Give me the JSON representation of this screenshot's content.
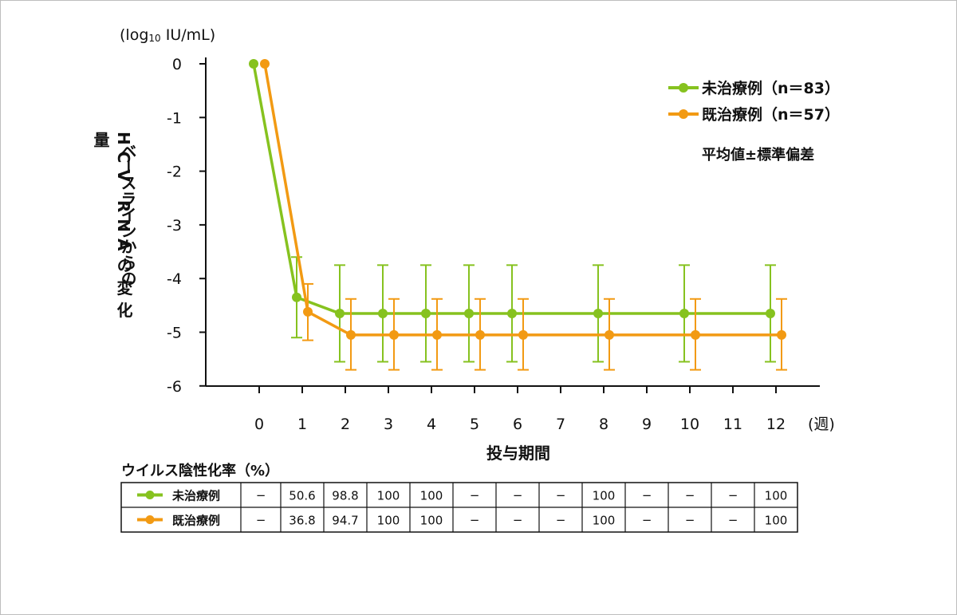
{
  "chart_data": {
    "type": "line",
    "ylabel_unit_pre": "(log",
    "ylabel_unit_sub": "10",
    "ylabel_unit_post": " IU/mL)",
    "ylabel_line1": "HCV RNAの変化量",
    "ylabel_line2": "ベースラインからの",
    "xlabel": "投与期間",
    "x_unit": "(週)",
    "ylim": [
      -6,
      0
    ],
    "y_ticks": [
      "0",
      "-1",
      "-2",
      "-3",
      "-4",
      "-5",
      "-6"
    ],
    "x_ticks": [
      "0",
      "1",
      "2",
      "3",
      "4",
      "5",
      "6",
      "7",
      "8",
      "9",
      "10",
      "11",
      "12"
    ],
    "stat_note": "平均値±標準偏差",
    "series": [
      {
        "name": "未治療例（n＝83）",
        "color": "#86c21f",
        "x": [
          0,
          1,
          2,
          3,
          4,
          5,
          6,
          8,
          10,
          12
        ],
        "values": [
          0,
          -4.35,
          -4.65,
          -4.65,
          -4.65,
          -4.65,
          -4.65,
          -4.65,
          -4.65,
          -4.65
        ],
        "err_low": [
          null,
          -5.1,
          -5.55,
          -5.55,
          -5.55,
          -5.55,
          -5.55,
          -5.55,
          -5.55,
          -5.55
        ],
        "err_high": [
          null,
          -3.6,
          -3.75,
          -3.75,
          -3.75,
          -3.75,
          -3.75,
          -3.75,
          -3.75,
          -3.75
        ]
      },
      {
        "name": "既治療例（n＝57）",
        "color": "#f29a13",
        "x": [
          0,
          1,
          2,
          3,
          4,
          5,
          6,
          8,
          10,
          12
        ],
        "values": [
          0,
          -4.62,
          -5.05,
          -5.05,
          -5.05,
          -5.05,
          -5.05,
          -5.05,
          -5.05,
          -5.05
        ],
        "err_low": [
          null,
          -5.15,
          -5.7,
          -5.7,
          -5.7,
          -5.7,
          -5.7,
          -5.7,
          -5.7,
          -5.7
        ],
        "err_high": [
          null,
          -4.1,
          -4.38,
          -4.38,
          -4.38,
          -4.38,
          -4.38,
          -4.38,
          -4.38,
          -4.38
        ]
      }
    ]
  },
  "table": {
    "title": "ウイルス陰性化率（%）",
    "rows": [
      {
        "label": "未治療例",
        "color": "#86c21f",
        "cells": [
          "─",
          "50.6",
          "98.8",
          "100",
          "100",
          "─",
          "─",
          "─",
          "100",
          "─",
          "─",
          "─",
          "100"
        ]
      },
      {
        "label": "既治療例",
        "color": "#f29a13",
        "cells": [
          "─",
          "36.8",
          "94.7",
          "100",
          "100",
          "─",
          "─",
          "─",
          "100",
          "─",
          "─",
          "─",
          "100"
        ]
      }
    ]
  }
}
